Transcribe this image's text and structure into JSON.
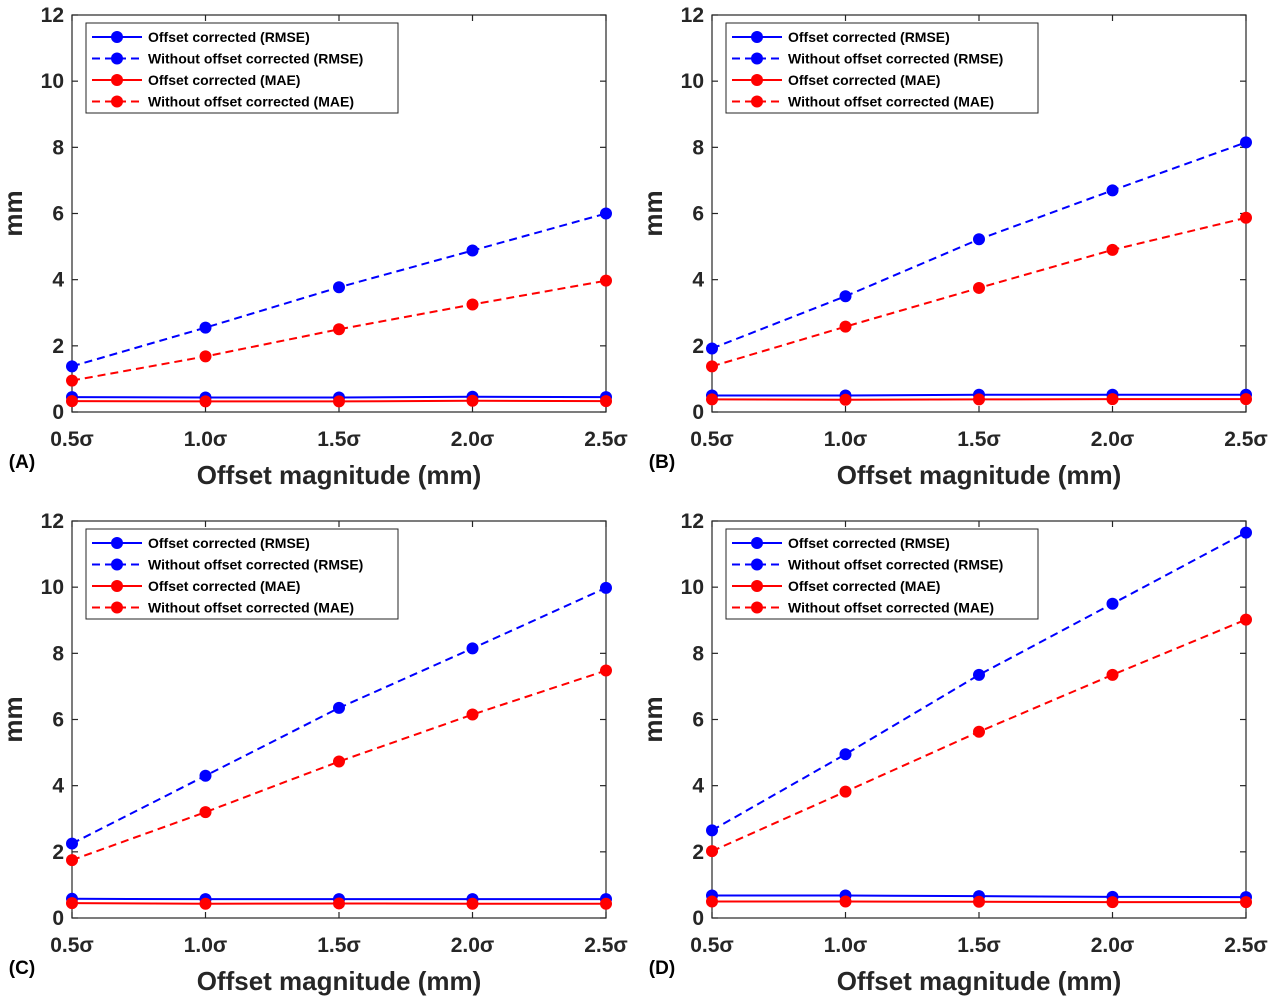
{
  "chart_data": [
    {
      "type": "line",
      "panel_label": "(A)",
      "categories": [
        "0.5σ",
        "1.0σ",
        "1.5σ",
        "2.0σ",
        "2.5σ"
      ],
      "xlabel": "Offset magnitude (mm)",
      "ylabel": "mm",
      "ylim": [
        0,
        12
      ],
      "yticks": [
        "0",
        "2",
        "4",
        "6",
        "8",
        "10",
        "12"
      ],
      "legend_position": "top-left",
      "series": [
        {
          "name": "Offset corrected (RMSE)",
          "color": "#0000ff",
          "style": "solid",
          "values": [
            0.45,
            0.44,
            0.44,
            0.46,
            0.45
          ]
        },
        {
          "name": "Without offset corrected (RMSE)",
          "color": "#0000ff",
          "style": "dashed",
          "values": [
            1.38,
            2.55,
            3.77,
            4.88,
            6.0
          ]
        },
        {
          "name": "Offset corrected (MAE)",
          "color": "#ff0000",
          "style": "solid",
          "values": [
            0.33,
            0.32,
            0.32,
            0.34,
            0.33
          ]
        },
        {
          "name": "Without offset corrected (MAE)",
          "color": "#ff0000",
          "style": "dashed",
          "values": [
            0.95,
            1.68,
            2.5,
            3.25,
            3.97
          ]
        }
      ]
    },
    {
      "type": "line",
      "panel_label": "(B)",
      "categories": [
        "0.5σ",
        "1.0σ",
        "1.5σ",
        "2.0σ",
        "2.5σ"
      ],
      "xlabel": "Offset magnitude (mm)",
      "ylabel": "mm",
      "ylim": [
        0,
        12
      ],
      "yticks": [
        "0",
        "2",
        "4",
        "6",
        "8",
        "10",
        "12"
      ],
      "legend_position": "top-left",
      "series": [
        {
          "name": "Offset corrected (RMSE)",
          "color": "#0000ff",
          "style": "solid",
          "values": [
            0.5,
            0.5,
            0.52,
            0.52,
            0.52
          ]
        },
        {
          "name": "Without offset corrected (RMSE)",
          "color": "#0000ff",
          "style": "dashed",
          "values": [
            1.92,
            3.5,
            5.22,
            6.7,
            8.15
          ]
        },
        {
          "name": "Offset corrected (MAE)",
          "color": "#ff0000",
          "style": "solid",
          "values": [
            0.38,
            0.37,
            0.38,
            0.39,
            0.39
          ]
        },
        {
          "name": "Without offset corrected (MAE)",
          "color": "#ff0000",
          "style": "dashed",
          "values": [
            1.38,
            2.58,
            3.75,
            4.9,
            5.87
          ]
        }
      ]
    },
    {
      "type": "line",
      "panel_label": "(C)",
      "categories": [
        "0.5σ",
        "1.0σ",
        "1.5σ",
        "2.0σ",
        "2.5σ"
      ],
      "xlabel": "Offset magnitude (mm)",
      "ylabel": "mm",
      "ylim": [
        0,
        12
      ],
      "yticks": [
        "0",
        "2",
        "4",
        "6",
        "8",
        "10",
        "12"
      ],
      "legend_position": "top-left",
      "series": [
        {
          "name": "Offset corrected (RMSE)",
          "color": "#0000ff",
          "style": "solid",
          "values": [
            0.58,
            0.57,
            0.57,
            0.57,
            0.57
          ]
        },
        {
          "name": "Without offset corrected (RMSE)",
          "color": "#0000ff",
          "style": "dashed",
          "values": [
            2.25,
            4.3,
            6.35,
            8.15,
            9.98
          ]
        },
        {
          "name": "Offset corrected (MAE)",
          "color": "#ff0000",
          "style": "solid",
          "values": [
            0.45,
            0.43,
            0.44,
            0.43,
            0.43
          ]
        },
        {
          "name": "Without offset corrected (MAE)",
          "color": "#ff0000",
          "style": "dashed",
          "values": [
            1.75,
            3.2,
            4.73,
            6.15,
            7.48
          ]
        }
      ]
    },
    {
      "type": "line",
      "panel_label": "(D)",
      "categories": [
        "0.5σ",
        "1.0σ",
        "1.5σ",
        "2.0σ",
        "2.5σ"
      ],
      "xlabel": "Offset magnitude (mm)",
      "ylabel": "mm",
      "ylim": [
        0,
        12
      ],
      "yticks": [
        "0",
        "2",
        "4",
        "6",
        "8",
        "10",
        "12"
      ],
      "legend_position": "top-left",
      "series": [
        {
          "name": "Offset corrected (RMSE)",
          "color": "#0000ff",
          "style": "solid",
          "values": [
            0.68,
            0.68,
            0.66,
            0.64,
            0.63
          ]
        },
        {
          "name": "Without offset corrected (RMSE)",
          "color": "#0000ff",
          "style": "dashed",
          "values": [
            2.65,
            4.95,
            7.35,
            9.5,
            11.65
          ]
        },
        {
          "name": "Offset corrected (MAE)",
          "color": "#ff0000",
          "style": "solid",
          "values": [
            0.5,
            0.5,
            0.49,
            0.48,
            0.48
          ]
        },
        {
          "name": "Without offset corrected (MAE)",
          "color": "#ff0000",
          "style": "dashed",
          "values": [
            2.02,
            3.82,
            5.63,
            7.35,
            9.02
          ]
        }
      ]
    }
  ]
}
